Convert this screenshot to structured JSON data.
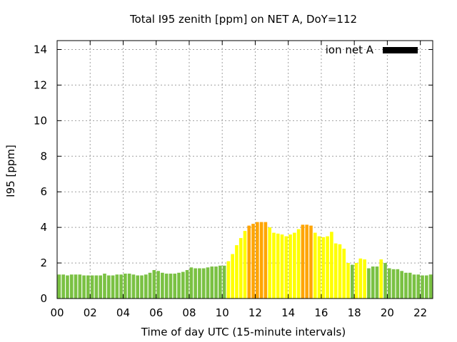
{
  "chart_data": {
    "type": "bar",
    "title": "Total I95 zenith [ppm] on NET A, DoY=112",
    "xlabel": "Time of day UTC (15-minute intervals)",
    "ylabel": "I95 [ppm]",
    "ylim": [
      0,
      14.5
    ],
    "xlim": [
      0,
      22.75
    ],
    "interval_hours": 0.25,
    "yticks": [
      "0",
      "2",
      "4",
      "6",
      "8",
      "10",
      "12",
      "14"
    ],
    "xticks": [
      "00",
      "02",
      "04",
      "06",
      "08",
      "10",
      "12",
      "14",
      "16",
      "18",
      "20",
      "22"
    ],
    "grid": true,
    "legend": {
      "label": "ion net A",
      "color": "#000000",
      "position": "top-right"
    },
    "level_colors": {
      "low": "#7ac143",
      "mid": "#ffff00",
      "high": "#ffa500"
    },
    "values": [
      1.35,
      1.35,
      1.3,
      1.35,
      1.35,
      1.35,
      1.3,
      1.3,
      1.3,
      1.3,
      1.3,
      1.4,
      1.3,
      1.3,
      1.35,
      1.35,
      1.4,
      1.4,
      1.35,
      1.3,
      1.3,
      1.35,
      1.45,
      1.6,
      1.55,
      1.45,
      1.4,
      1.4,
      1.4,
      1.45,
      1.5,
      1.6,
      1.75,
      1.7,
      1.7,
      1.7,
      1.75,
      1.8,
      1.8,
      1.85,
      1.85,
      2.1,
      2.5,
      3.0,
      3.4,
      3.8,
      4.1,
      4.2,
      4.3,
      4.3,
      4.3,
      4.0,
      3.7,
      3.65,
      3.6,
      3.5,
      3.6,
      3.7,
      3.9,
      4.15,
      4.15,
      4.1,
      3.7,
      3.5,
      3.45,
      3.5,
      3.75,
      3.1,
      3.05,
      2.8,
      2.0,
      1.9,
      2.0,
      2.25,
      2.2,
      1.7,
      1.8,
      1.8,
      2.2,
      2.0,
      1.7,
      1.65,
      1.65,
      1.55,
      1.45,
      1.45,
      1.35,
      1.35,
      1.3,
      1.3,
      1.35
    ],
    "levels": [
      "low",
      "low",
      "low",
      "low",
      "low",
      "low",
      "low",
      "low",
      "low",
      "low",
      "low",
      "low",
      "low",
      "low",
      "low",
      "low",
      "low",
      "low",
      "low",
      "low",
      "low",
      "low",
      "low",
      "low",
      "low",
      "low",
      "low",
      "low",
      "low",
      "low",
      "low",
      "low",
      "low",
      "low",
      "low",
      "low",
      "low",
      "low",
      "low",
      "low",
      "low",
      "mid",
      "mid",
      "mid",
      "mid",
      "mid",
      "high",
      "high",
      "high",
      "high",
      "high",
      "mid",
      "mid",
      "mid",
      "mid",
      "mid",
      "mid",
      "mid",
      "mid",
      "high",
      "high",
      "high",
      "mid",
      "mid",
      "mid",
      "mid",
      "mid",
      "mid",
      "mid",
      "mid",
      "mid",
      "low",
      "mid",
      "mid",
      "mid",
      "low",
      "low",
      "low",
      "mid",
      "low",
      "low",
      "low",
      "low",
      "low",
      "low",
      "low",
      "low",
      "low",
      "low",
      "low",
      "low"
    ]
  }
}
